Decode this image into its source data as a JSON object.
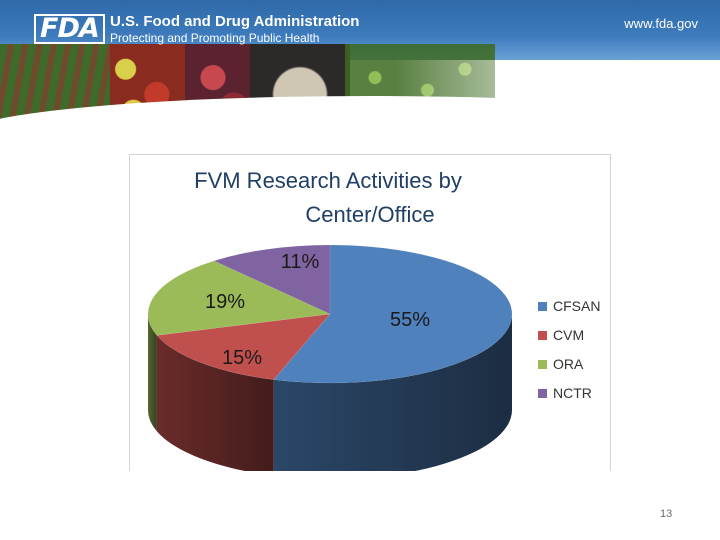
{
  "header": {
    "logo_text": "FDA",
    "agency_name": "U.S. Food and Drug Administration",
    "tagline": "Protecting and Promoting Public Health",
    "url": "www.fda.gov"
  },
  "chart_data": {
    "type": "pie",
    "title": "FVM Research Activities by Center/Office",
    "title_lines": [
      "FVM Research Activities by",
      "Center/Office"
    ],
    "categories": [
      "CFSAN",
      "CVM",
      "ORA",
      "NCTR"
    ],
    "values": [
      55,
      15,
      19,
      11
    ],
    "data_labels": [
      "55%",
      "15%",
      "19%",
      "11%"
    ],
    "colors": [
      "#4f81bd",
      "#c0504d",
      "#9bbb59",
      "#8064a2"
    ],
    "legend_position": "right",
    "style": "3d"
  },
  "footer": {
    "page_number": "13"
  }
}
